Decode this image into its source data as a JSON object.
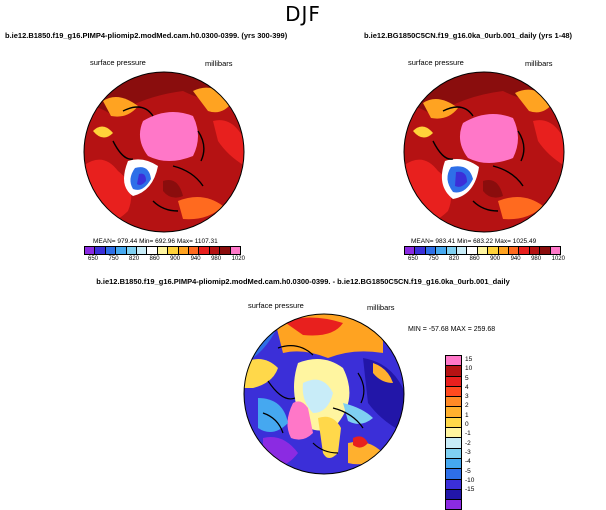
{
  "figure": {
    "season": "DJF",
    "left_panel": {
      "case_title": "b.ie12.B1850.f19_g16.PIMP4-pliomip2.modMed.cam.h0.0300-0399. (yrs 300-399)",
      "field": "surface pressure",
      "units": "millibars",
      "stats": "MEAN= 979.44   Min= 692.96   Max= 1107.31",
      "ticks": [
        "650",
        "750",
        "820",
        "860",
        "900",
        "940",
        "980",
        "1020"
      ]
    },
    "right_panel": {
      "case_title": "b.ie12.BG1850C5CN.f19_g16.0ka_0urb.001_daily (yrs 1-48)",
      "field": "surface pressure",
      "units": "millibars",
      "stats": "MEAN= 983.41   Min= 683.22   Max= 1025.49",
      "ticks": [
        "650",
        "750",
        "820",
        "860",
        "900",
        "940",
        "980",
        "1020"
      ]
    },
    "diff_panel": {
      "case_title": "b.ie12.B1850.f19_g16.PIMP4-pliomip2.modMed.cam.h0.0300-0399. - b.ie12.BG1850C5CN.f19_g16.0ka_0urb.001_daily",
      "field": "surface pressure",
      "units": "millibars",
      "stats": "MIN = -57.68  MAX = 259.68",
      "ticks": [
        "15",
        "10",
        "5",
        "4",
        "3",
        "2",
        "1",
        "0",
        "-1",
        "-2",
        "-3",
        "-4",
        "-5",
        "-10",
        "-15"
      ]
    }
  },
  "colors": {
    "abs_scale": [
      "#8b2be2",
      "#3b2fd8",
      "#2e6fe8",
      "#45a8f0",
      "#7fd0f2",
      "#c8ecf8",
      "#ffffff",
      "#fff5a0",
      "#ffd23a",
      "#ffa321",
      "#ff6a1f",
      "#e8201e",
      "#b51213",
      "#8a0d0d",
      "#ff77c8"
    ],
    "diff_scale": [
      "#ff77c8",
      "#b51213",
      "#e8201e",
      "#ff4a1f",
      "#ff8a26",
      "#ffb02e",
      "#ffd84a",
      "#fff5a0",
      "#c8ecf8",
      "#7fd0f2",
      "#45a8f0",
      "#2e6fe8",
      "#3b2fd8",
      "#2216a8",
      "#8b2be2"
    ]
  }
}
